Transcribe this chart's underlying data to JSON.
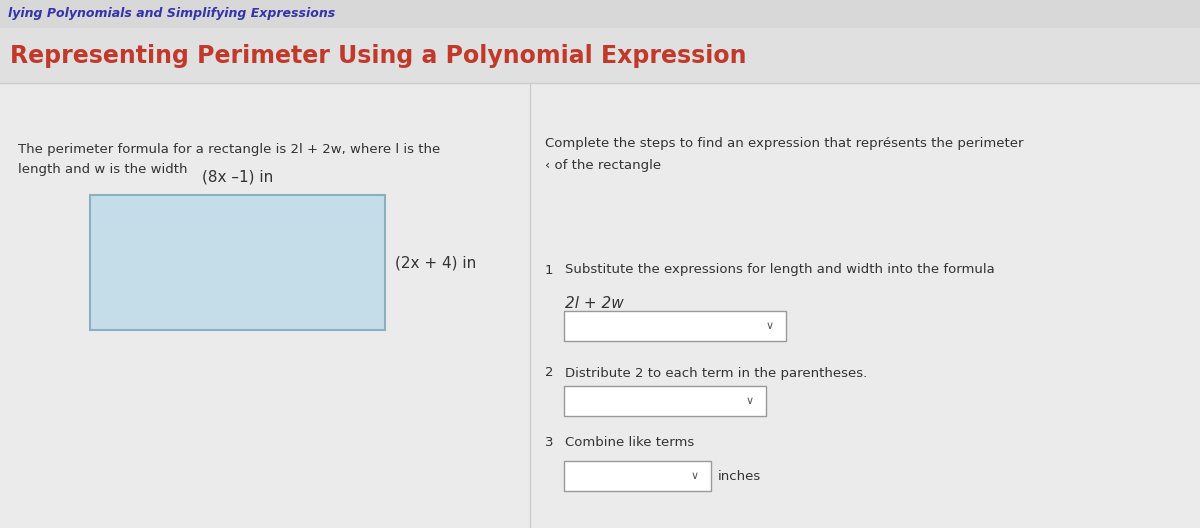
{
  "bg_color": "#e8e8e8",
  "header_bg": "#d8d8d8",
  "header_text": "lying Polynomials and Simplifying Expressions",
  "header_text_color": "#3333aa",
  "header_text_style": "italic",
  "title": "Representing Perimeter Using a Polynomial Expression",
  "title_color": "#c0392b",
  "title_fontsize": 17,
  "left_desc_line1": "The perimeter formula for a rectangle is 2l + 2w, where l is the",
  "left_desc_line2": "length and w is the width",
  "right_desc_line1": "Complete the steps to find an expression that représents the perimeter",
  "right_desc_line2": "‹ of the rectangle",
  "length_label": "(8x –1) in",
  "width_label": "(2x + 4) in",
  "rect_fill": "#c5dde8",
  "rect_border": "#8ab0c0",
  "step1_num": "1",
  "step1_text": "Substitute the expressions for length and width into the formula",
  "formula": "2l + 2w",
  "step2_num": "2",
  "step2_text": "Distribute 2 to each term in the parentheses.",
  "step3_num": "3",
  "step3_text": "Combine like terms",
  "inches_label": "inches",
  "dropdown_bg": "#ffffff",
  "dropdown_border": "#999999",
  "text_color": "#333333",
  "divider_color": "#cccccc",
  "desc_fontsize": 9.5,
  "step_fontsize": 9.5,
  "formula_fontsize": 11
}
